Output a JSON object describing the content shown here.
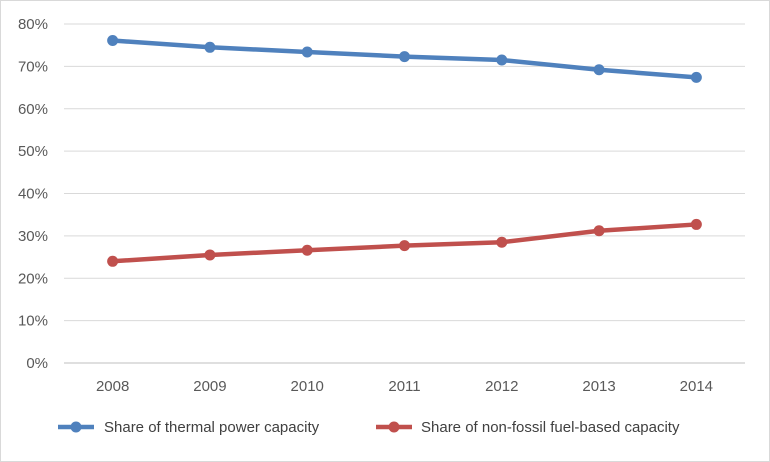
{
  "chart_data": {
    "type": "line",
    "categories": [
      "2008",
      "2009",
      "2010",
      "2011",
      "2012",
      "2013",
      "2014"
    ],
    "series": [
      {
        "name": "Share of thermal power capacity",
        "color": "#4f81bd",
        "values": [
          76.1,
          74.5,
          73.4,
          72.3,
          71.5,
          69.2,
          67.4
        ]
      },
      {
        "name": "Share of non-fossil fuel-based capacity",
        "color": "#c0504d",
        "values": [
          24.0,
          25.5,
          26.6,
          27.7,
          28.5,
          31.2,
          32.7
        ]
      }
    ],
    "y_ticks": [
      "0%",
      "10%",
      "20%",
      "30%",
      "40%",
      "50%",
      "60%",
      "70%",
      "80%"
    ],
    "ylim": [
      0,
      80
    ],
    "grid": true,
    "legend_position": "bottom"
  }
}
